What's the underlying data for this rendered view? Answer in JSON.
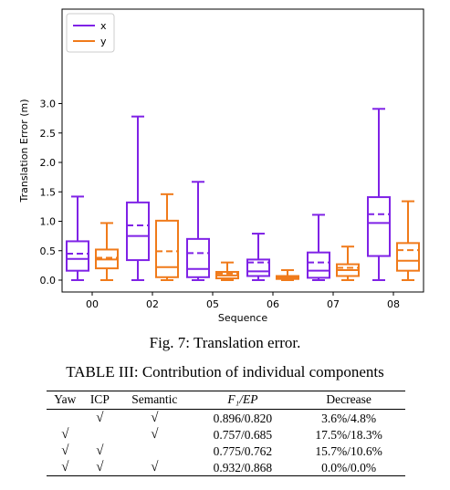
{
  "chart_data": {
    "type": "box",
    "ylabel": "Translation Error (m)",
    "xlabel": "Sequence",
    "ylim": [
      0.0,
      3.0
    ],
    "yticks": [
      "0.0",
      "0.5",
      "1.0",
      "1.5",
      "2.0",
      "2.5",
      "3.0"
    ],
    "categories": [
      "00",
      "02",
      "05",
      "06",
      "07",
      "08"
    ],
    "legend_position": "top-left",
    "series": [
      {
        "name": "x",
        "color": "#7f22e6",
        "boxes": [
          {
            "min": 0.0,
            "q1": 0.16,
            "median": 0.36,
            "mean": 0.45,
            "q3": 0.66,
            "max": 1.42
          },
          {
            "min": 0.0,
            "q1": 0.34,
            "median": 0.75,
            "mean": 0.93,
            "q3": 1.32,
            "max": 2.78
          },
          {
            "min": 0.0,
            "q1": 0.05,
            "median": 0.19,
            "mean": 0.46,
            "q3": 0.7,
            "max": 1.67
          },
          {
            "min": 0.0,
            "q1": 0.07,
            "median": 0.15,
            "mean": 0.3,
            "q3": 0.35,
            "max": 0.79
          },
          {
            "min": 0.0,
            "q1": 0.04,
            "median": 0.16,
            "mean": 0.3,
            "q3": 0.47,
            "max": 1.11
          },
          {
            "min": 0.0,
            "q1": 0.41,
            "median": 0.97,
            "mean": 1.12,
            "q3": 1.41,
            "max": 2.91
          }
        ]
      },
      {
        "name": "y",
        "color": "#f07a1a",
        "boxes": [
          {
            "min": 0.0,
            "q1": 0.2,
            "median": 0.35,
            "mean": 0.38,
            "q3": 0.52,
            "max": 0.97
          },
          {
            "min": 0.0,
            "q1": 0.05,
            "median": 0.22,
            "mean": 0.49,
            "q3": 1.01,
            "max": 1.46
          },
          {
            "min": 0.0,
            "q1": 0.03,
            "median": 0.08,
            "mean": 0.11,
            "q3": 0.14,
            "max": 0.3
          },
          {
            "min": 0.0,
            "q1": 0.02,
            "median": 0.04,
            "mean": 0.06,
            "q3": 0.07,
            "max": 0.17
          },
          {
            "min": 0.0,
            "q1": 0.07,
            "median": 0.17,
            "mean": 0.21,
            "q3": 0.27,
            "max": 0.57
          },
          {
            "min": 0.0,
            "q1": 0.16,
            "median": 0.33,
            "mean": 0.51,
            "q3": 0.63,
            "max": 1.34
          }
        ]
      }
    ]
  },
  "figure_caption": "Fig. 7: Translation error.",
  "table": {
    "caption": "TABLE III: Contribution of individual components",
    "headers": [
      "Yaw",
      "ICP",
      "Semantic",
      "F₁/EP",
      "Decrease"
    ],
    "check_symbol": "√",
    "rows": [
      {
        "yaw": "",
        "icp": "√",
        "semantic": "√",
        "f1ep": "0.896/0.820",
        "decrease": "3.6%/4.8%"
      },
      {
        "yaw": "√",
        "icp": "",
        "semantic": "√",
        "f1ep": "0.757/0.685",
        "decrease": "17.5%/18.3%"
      },
      {
        "yaw": "√",
        "icp": "√",
        "semantic": "",
        "f1ep": "0.775/0.762",
        "decrease": "15.7%/10.6%"
      },
      {
        "yaw": "√",
        "icp": "√",
        "semantic": "√",
        "f1ep": "0.932/0.868",
        "decrease": "0.0%/0.0%"
      }
    ]
  }
}
